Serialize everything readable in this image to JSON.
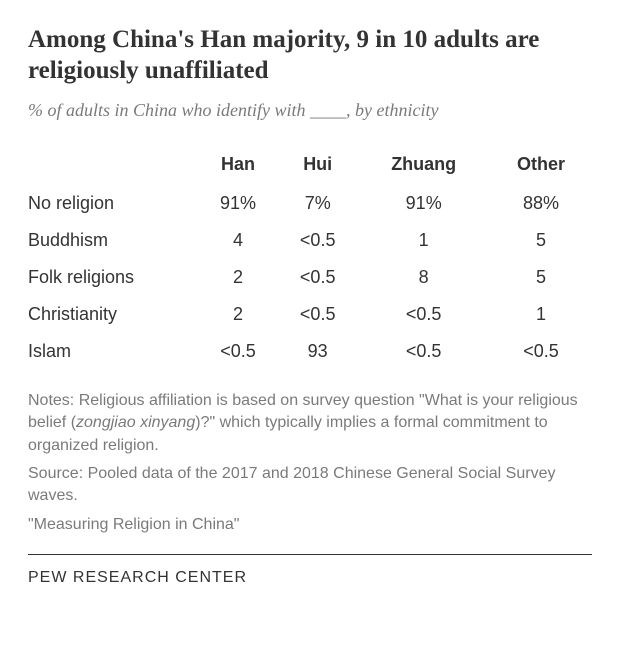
{
  "title": "Among China's Han majority, 9 in 10 adults are religiously unaffiliated",
  "subtitle": "% of adults in China who identify with ____, by ethnicity",
  "table": {
    "type": "table",
    "columns": [
      "",
      "Han",
      "Hui",
      "Zhuang",
      "Other"
    ],
    "rows": [
      {
        "label": "No religion",
        "cells": [
          "91%",
          "7%",
          "91%",
          "88%"
        ]
      },
      {
        "label": "Buddhism",
        "cells": [
          "4",
          "<0.5",
          "1",
          "5"
        ]
      },
      {
        "label": "Folk religions",
        "cells": [
          "2",
          "<0.5",
          "8",
          "5"
        ]
      },
      {
        "label": "Christianity",
        "cells": [
          "2",
          "<0.5",
          "<0.5",
          "1"
        ]
      },
      {
        "label": "Islam",
        "cells": [
          "<0.5",
          "93",
          "<0.5",
          "<0.5"
        ]
      }
    ],
    "header_fontweight": "bold",
    "cell_fontsize": 18,
    "text_color": "#333333",
    "background_color": "#ffffff"
  },
  "notes_prefix": "Notes: Religious affiliation is based on survey question \"What is your religious belief (",
  "notes_italic": "zongjiao xinyang",
  "notes_suffix": ")?\" which typically implies a formal commitment to organized religion.",
  "source": "Source: Pooled data of the 2017 and 2018 Chinese General Social Survey waves.",
  "report": "\"Measuring Religion in China\"",
  "footer": "PEW RESEARCH CENTER",
  "colors": {
    "title": "#333333",
    "subtitle": "#7a7a7a",
    "notes": "#7a7a7a",
    "divider": "#333333",
    "background": "#ffffff"
  }
}
